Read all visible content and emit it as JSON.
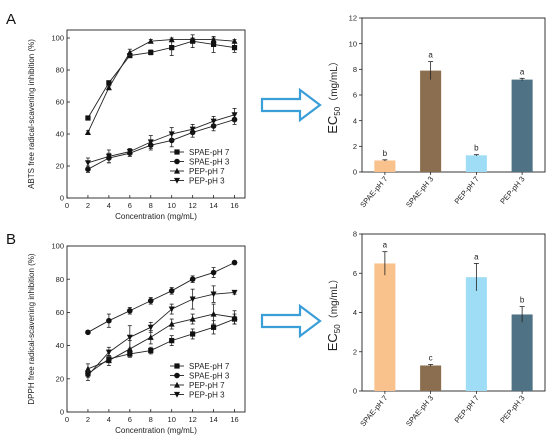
{
  "panels": [
    {
      "label": "A",
      "line_chart": {
        "type": "line",
        "ylabel": "ABTS free radical-scavening inhibition (%)",
        "xlabel": "Concentration (mg/mL)",
        "x": [
          2,
          4,
          6,
          8,
          10,
          12,
          14,
          16
        ],
        "xlim": [
          0,
          17
        ],
        "ylim": [
          0,
          105
        ],
        "xticks": [
          0,
          2,
          4,
          6,
          8,
          10,
          12,
          14,
          16
        ],
        "yticks": [
          0,
          20,
          40,
          60,
          80,
          100
        ],
        "legend_position": "bottom-right",
        "series": [
          {
            "name": "SPAE-pH 7",
            "marker": "square",
            "values": [
              50,
              72,
              89,
              91,
              94,
              98,
              96,
              94
            ],
            "err": [
              1,
              1,
              1,
              1.5,
              5,
              4,
              5,
              3
            ]
          },
          {
            "name": "SPAE-pH 3",
            "marker": "circle",
            "values": [
              18,
              25,
              28,
              33,
              36,
              41,
              45,
              49
            ],
            "err": [
              2,
              3,
              2,
              3,
              4,
              3,
              3,
              3
            ]
          },
          {
            "name": "PEP-pH 7",
            "marker": "triangle-up",
            "values": [
              41,
              69,
              91,
              98,
              99,
              99,
              99,
              98
            ],
            "err": [
              1,
              1,
              2,
              1,
              1,
              1,
              1,
              1
            ]
          },
          {
            "name": "PEP-pH 3",
            "marker": "triangle-down",
            "values": [
              22,
              26,
              29,
              35,
              40,
              43,
              48,
              52
            ],
            "err": [
              3,
              4,
              2,
              4,
              4,
              3,
              3,
              4
            ]
          }
        ]
      },
      "bar_chart": {
        "type": "bar",
        "ylabel_main": "EC",
        "ylabel_sub": "50",
        "ylabel_unit": "（mg/mL）",
        "categories": [
          "SPAE-pH 7",
          "SPAE-pH 3",
          "PEP-pH 7",
          "PEP-pH 3"
        ],
        "values": [
          0.9,
          7.9,
          1.3,
          7.2
        ],
        "err": [
          0.05,
          0.7,
          0.05,
          0.1
        ],
        "letters": [
          "b",
          "a",
          "b",
          "a"
        ],
        "colors": [
          "#f9c28c",
          "#8b6d4f",
          "#9fdcf5",
          "#4f7285"
        ],
        "ylim": [
          0,
          12
        ],
        "yticks": [
          0,
          2,
          4,
          6,
          8,
          10,
          12
        ]
      }
    },
    {
      "label": "B",
      "line_chart": {
        "type": "line",
        "ylabel": "DPPH free radical-scavening inhibition (%)",
        "xlabel": "Concentration (mg/mL)",
        "x": [
          2,
          4,
          6,
          8,
          10,
          12,
          14,
          16
        ],
        "xlim": [
          0,
          17
        ],
        "ylim": [
          0,
          100
        ],
        "xticks": [
          0,
          2,
          4,
          6,
          8,
          10,
          12,
          14,
          16
        ],
        "yticks": [
          0,
          20,
          40,
          60,
          80,
          100
        ],
        "legend_position": "bottom-right",
        "series": [
          {
            "name": "SPAE-pH 7",
            "marker": "square",
            "values": [
              23,
              32,
              35,
              37,
              43,
              47,
              51,
              56
            ],
            "err": [
              2,
              2,
              2,
              2,
              3,
              3,
              4,
              3
            ]
          },
          {
            "name": "SPAE-pH 3",
            "marker": "circle",
            "values": [
              48,
              55,
              61,
              67,
              73,
              80,
              84,
              90
            ],
            "err": [
              1,
              4,
              2,
              2,
              2,
              2,
              3,
              1
            ]
          },
          {
            "name": "PEP-pH 7",
            "marker": "triangle-up",
            "values": [
              26,
              31,
              38,
              45,
              53,
              56,
              59,
              57
            ],
            "err": [
              3,
              3,
              5,
              4,
              3,
              3,
              6,
              4
            ]
          },
          {
            "name": "PEP-pH 3",
            "marker": "triangle-down",
            "values": [
              22,
              36,
              45,
              51,
              62,
              68,
              71,
              72
            ],
            "err": [
              3,
              3,
              7,
              3,
              3,
              6,
              5,
              1
            ]
          }
        ]
      },
      "bar_chart": {
        "type": "bar",
        "ylabel_main": "EC",
        "ylabel_sub": "50",
        "ylabel_unit": "（mg/mL）",
        "categories": [
          "SPAE-pH 7",
          "SPAE-pH 3",
          "PEP-pH 7",
          "PEP-pH 3"
        ],
        "values": [
          6.5,
          1.3,
          5.8,
          3.9
        ],
        "err": [
          0.6,
          0.05,
          0.7,
          0.4
        ],
        "letters": [
          "a",
          "c",
          "a",
          "b"
        ],
        "colors": [
          "#f9c28c",
          "#8b6d4f",
          "#9fdcf5",
          "#4f7285"
        ],
        "ylim": [
          0,
          8
        ],
        "yticks": [
          0,
          2,
          4,
          6,
          8
        ]
      }
    }
  ],
  "arrow_color": "#3a9fd8"
}
